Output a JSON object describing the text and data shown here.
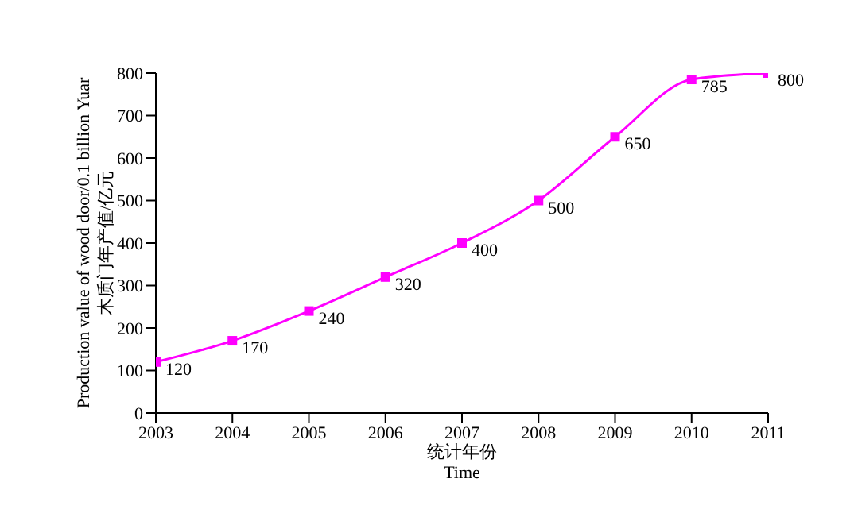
{
  "chart_data": {
    "type": "line",
    "xlabel": "统计年份\nTime",
    "ylabel": "Production value of wood door/0.1 billion Yuar\n木质门年产值/亿元",
    "x": [
      2003,
      2004,
      2005,
      2006,
      2007,
      2008,
      2009,
      2010,
      2011
    ],
    "series": [
      {
        "color": "#ff00ff",
        "values": [
          120,
          170,
          240,
          320,
          400,
          500,
          650,
          785,
          800
        ]
      }
    ],
    "xlim": [
      2003,
      2011
    ],
    "xticks": [
      2003,
      2004,
      2005,
      2006,
      2007,
      2008,
      2009,
      2010,
      2011
    ],
    "ylim": [
      0,
      800
    ],
    "yticks": [
      0,
      100,
      200,
      300,
      400,
      500,
      600,
      700,
      800
    ],
    "grid": false,
    "legend": false,
    "marker": "square",
    "line_style": "solid",
    "data_labels": true
  }
}
